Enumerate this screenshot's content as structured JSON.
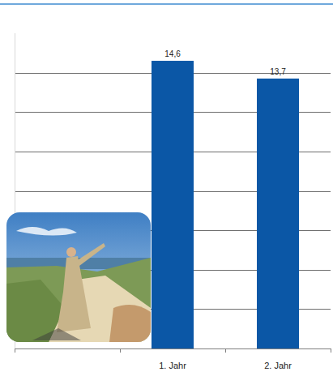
{
  "chart_data": {
    "type": "bar",
    "categories": [
      null,
      "1. Jahr",
      "2. Jahr"
    ],
    "values": [
      null,
      14.6,
      13.7
    ],
    "value_labels": [
      null,
      "14,6",
      "13,7"
    ],
    "color": "#0b57a6",
    "ylim": [
      0,
      16
    ],
    "yticks": [
      0,
      2,
      4,
      6,
      8,
      10,
      12,
      14
    ],
    "grid": true,
    "data_labels": true,
    "tick_labels": "x"
  }
}
